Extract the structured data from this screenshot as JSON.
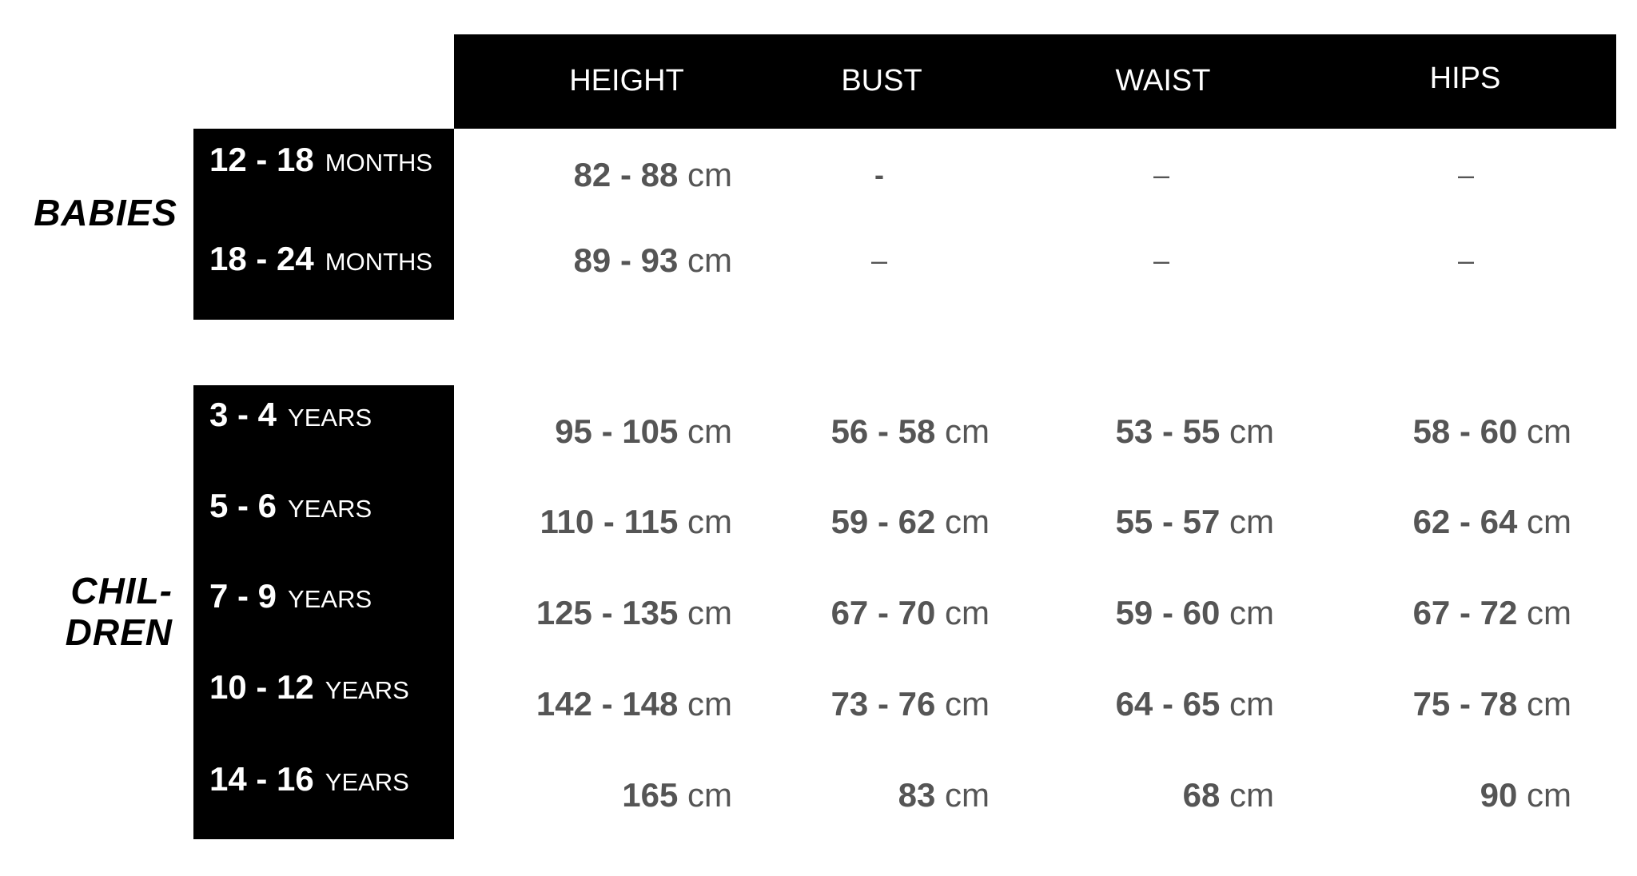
{
  "columns": [
    "HEIGHT",
    "BUST",
    "WAIST",
    "HIPS"
  ],
  "groups": [
    {
      "label": "BABIES",
      "rows": [
        {
          "range": "12 - 18",
          "unit": "MONTHS",
          "values": [
            "82 - 88",
            "-",
            "–",
            "–"
          ]
        },
        {
          "range": "18 - 24",
          "unit": "MONTHS",
          "values": [
            "89 - 93",
            "–",
            "–",
            "–"
          ]
        }
      ]
    },
    {
      "label_line1": "CHIL-",
      "label_line2": "DREN",
      "rows": [
        {
          "range": "3 - 4",
          "unit": "YEARS",
          "values": [
            "95 - 105",
            "56 - 58",
            "53 - 55",
            "58 - 60"
          ]
        },
        {
          "range": "5 - 6",
          "unit": "YEARS",
          "values": [
            "110 - 115",
            "59 - 62",
            "55 - 57",
            "62 - 64"
          ]
        },
        {
          "range": "7 - 9",
          "unit": "YEARS",
          "values": [
            "125 - 135",
            "67 - 70",
            "59 - 60",
            "67 - 72"
          ]
        },
        {
          "range": "10 - 12",
          "unit": "YEARS",
          "values": [
            "142 - 148",
            "73 - 76",
            "64 - 65",
            "75 - 78"
          ]
        },
        {
          "range": "14 - 16",
          "unit": "YEARS",
          "values": [
            "165",
            "83",
            "68",
            "90"
          ]
        }
      ]
    }
  ],
  "unit": "cm"
}
